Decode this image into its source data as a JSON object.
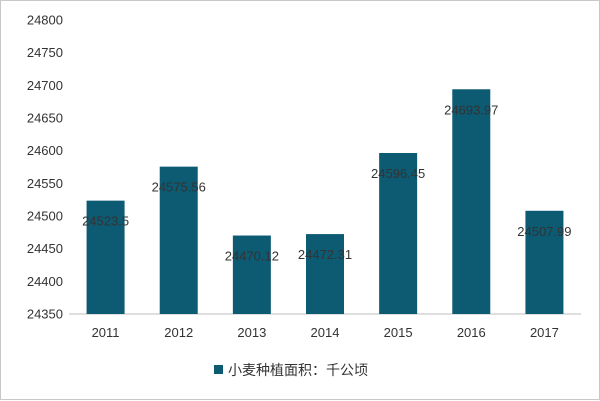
{
  "chart_data": {
    "type": "bar",
    "title": "",
    "xlabel": "",
    "ylabel": "",
    "categories": [
      "2011",
      "2012",
      "2013",
      "2014",
      "2015",
      "2016",
      "2017"
    ],
    "series": [
      {
        "name": "小麦种植面积：千公顷",
        "values": [
          24523.5,
          24575.56,
          24470.12,
          24472.31,
          24596.45,
          24693.97,
          24507.99
        ],
        "labels": [
          "24523.5",
          "24575.56",
          "24470.12",
          "24472.31",
          "24596.45",
          "24693.97",
          "24507.99"
        ]
      }
    ],
    "ylim": [
      24350,
      24800
    ],
    "yticks": [
      24350,
      24400,
      24450,
      24500,
      24550,
      24600,
      24650,
      24700,
      24750,
      24800
    ],
    "grid": false,
    "legend_position": "bottom",
    "bar_color": "#0d5a73"
  }
}
